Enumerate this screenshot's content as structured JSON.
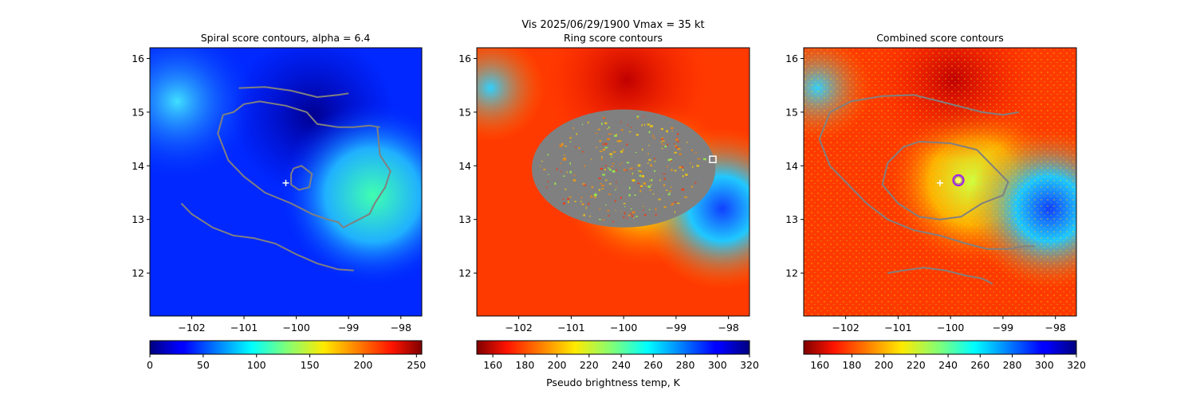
{
  "figure": {
    "suptitle_line1": "Vis  2025/06/29/1900    Vmax = 35 kt",
    "colorbar_label": "Pseudo brightness temp, K"
  },
  "chart_data": [
    {
      "type": "heatmap",
      "title": "Spiral score contours, alpha =  6.4",
      "xlim": [
        -102.8,
        -97.6
      ],
      "ylim": [
        11.2,
        16.2
      ],
      "xticks": [
        -102,
        -101,
        -100,
        -99,
        -98
      ],
      "yticks": [
        12,
        13,
        14,
        15,
        16
      ],
      "colormap": "jet",
      "colorbar": {
        "min": 0,
        "max": 255,
        "ticks": [
          0,
          50,
          100,
          150,
          200,
          250
        ]
      },
      "marker": {
        "symbol": "+",
        "x": -100.2,
        "y": 13.68,
        "color": "#ffffff"
      },
      "contours": [
        [
          [
            -101.1,
            15.45
          ],
          [
            -100.6,
            15.47
          ],
          [
            -100.1,
            15.4
          ],
          [
            -99.6,
            15.28
          ],
          [
            -99.2,
            15.32
          ],
          [
            -99.0,
            15.35
          ]
        ],
        [
          [
            -101.4,
            14.95
          ],
          [
            -101.2,
            15.0
          ],
          [
            -101.0,
            15.15
          ],
          [
            -100.7,
            15.2
          ],
          [
            -100.2,
            15.12
          ],
          [
            -99.8,
            15.0
          ],
          [
            -99.6,
            14.78
          ],
          [
            -99.2,
            14.72
          ],
          [
            -98.9,
            14.72
          ],
          [
            -98.6,
            14.75
          ],
          [
            -98.4,
            14.72
          ]
        ],
        [
          [
            -101.4,
            14.95
          ],
          [
            -101.5,
            14.6
          ],
          [
            -101.3,
            14.1
          ],
          [
            -101.0,
            13.8
          ],
          [
            -100.6,
            13.5
          ],
          [
            -100.1,
            13.3
          ],
          [
            -99.7,
            13.1
          ],
          [
            -99.4,
            13.0
          ],
          [
            -99.2,
            12.95
          ],
          [
            -99.1,
            12.85
          ],
          [
            -99.0,
            12.9
          ],
          [
            -98.8,
            13.0
          ],
          [
            -98.6,
            13.1
          ],
          [
            -98.5,
            13.3
          ],
          [
            -98.3,
            13.6
          ],
          [
            -98.2,
            13.9
          ],
          [
            -98.4,
            14.2
          ],
          [
            -98.45,
            14.72
          ]
        ],
        [
          [
            -100.05,
            13.95
          ],
          [
            -99.9,
            14.0
          ],
          [
            -99.7,
            13.85
          ],
          [
            -99.75,
            13.6
          ],
          [
            -99.95,
            13.55
          ],
          [
            -100.1,
            13.65
          ],
          [
            -100.1,
            13.85
          ],
          [
            -100.05,
            13.95
          ]
        ],
        [
          [
            -102.2,
            13.3
          ],
          [
            -102.0,
            13.1
          ],
          [
            -101.6,
            12.85
          ],
          [
            -101.2,
            12.7
          ],
          [
            -100.8,
            12.65
          ],
          [
            -100.4,
            12.55
          ],
          [
            -100.0,
            12.35
          ],
          [
            -99.6,
            12.18
          ],
          [
            -99.2,
            12.07
          ],
          [
            -98.9,
            12.05
          ]
        ]
      ]
    },
    {
      "type": "heatmap",
      "title": "Ring score contours",
      "xlim": [
        -102.8,
        -97.6
      ],
      "ylim": [
        11.2,
        16.2
      ],
      "xticks": [
        -102,
        -101,
        -100,
        -99,
        -98
      ],
      "yticks": [
        12,
        13,
        14,
        15,
        16
      ],
      "colormap": "jet_r",
      "colorbar": {
        "min": 150,
        "max": 320,
        "ticks": [
          160,
          180,
          200,
          220,
          240,
          260,
          280,
          300,
          320
        ]
      },
      "marker": {
        "symbol": "square",
        "x": -98.3,
        "y": 14.12,
        "color": "#ffffff"
      },
      "masked_region": {
        "center_x": -100.0,
        "center_y": 13.95,
        "radius_x": 1.75,
        "radius_y": 1.1,
        "color": "#808080"
      }
    },
    {
      "type": "heatmap",
      "title": "Combined score contours",
      "xlim": [
        -102.8,
        -97.6
      ],
      "ylim": [
        11.2,
        16.2
      ],
      "xticks": [
        -102,
        -101,
        -100,
        -99,
        -98
      ],
      "yticks": [
        12,
        13,
        14,
        15,
        16
      ],
      "colormap": "jet_r",
      "colorbar": {
        "min": 150,
        "max": 320,
        "ticks": [
          160,
          180,
          200,
          220,
          240,
          260,
          280,
          300,
          320
        ]
      },
      "marker": {
        "symbol": "+",
        "x": -100.2,
        "y": 13.68,
        "color": "#ffffff"
      },
      "center_circle": {
        "x": -99.85,
        "y": 13.73,
        "color": "#a020f0"
      },
      "contours": [
        [
          [
            -102.3,
            15.0
          ],
          [
            -101.9,
            15.2
          ],
          [
            -101.3,
            15.3
          ],
          [
            -100.7,
            15.32
          ],
          [
            -100.2,
            15.2
          ],
          [
            -99.8,
            15.1
          ],
          [
            -99.4,
            15.0
          ],
          [
            -99.0,
            14.95
          ],
          [
            -98.7,
            15.0
          ]
        ],
        [
          [
            -102.3,
            15.0
          ],
          [
            -102.5,
            14.5
          ],
          [
            -102.3,
            14.0
          ],
          [
            -102.0,
            13.7
          ],
          [
            -101.6,
            13.3
          ],
          [
            -101.2,
            13.0
          ],
          [
            -100.7,
            12.8
          ],
          [
            -100.2,
            12.7
          ],
          [
            -99.7,
            12.55
          ],
          [
            -99.3,
            12.45
          ],
          [
            -98.9,
            12.45
          ],
          [
            -98.6,
            12.5
          ],
          [
            -98.4,
            12.5
          ]
        ],
        [
          [
            -100.6,
            14.45
          ],
          [
            -100.0,
            14.42
          ],
          [
            -99.5,
            14.3
          ],
          [
            -99.2,
            14.0
          ],
          [
            -98.9,
            13.7
          ],
          [
            -99.0,
            13.45
          ],
          [
            -99.4,
            13.3
          ],
          [
            -99.8,
            13.05
          ],
          [
            -100.2,
            13.0
          ],
          [
            -100.6,
            13.05
          ],
          [
            -101.0,
            13.3
          ],
          [
            -101.3,
            13.65
          ],
          [
            -101.2,
            14.05
          ],
          [
            -100.9,
            14.35
          ],
          [
            -100.6,
            14.45
          ]
        ],
        [
          [
            -101.2,
            12.0
          ],
          [
            -100.9,
            12.05
          ],
          [
            -100.5,
            12.1
          ],
          [
            -100.1,
            12.05
          ],
          [
            -99.7,
            11.95
          ],
          [
            -99.4,
            11.9
          ],
          [
            -99.2,
            11.8
          ]
        ]
      ]
    }
  ]
}
